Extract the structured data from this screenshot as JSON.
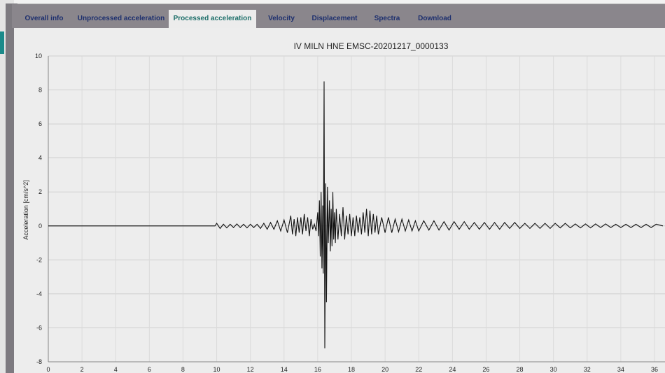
{
  "tabs": [
    {
      "label": "Overall info",
      "active": false
    },
    {
      "label": "Unprocessed acceleration",
      "active": false
    },
    {
      "label": "Processed acceleration",
      "active": true
    },
    {
      "label": "Velocity",
      "active": false
    },
    {
      "label": "Displacement",
      "active": false
    },
    {
      "label": "Spectra",
      "active": false
    },
    {
      "label": "Download",
      "active": false
    }
  ],
  "chart_data": {
    "type": "line",
    "title": "IV MILN HNE EMSC-20201217_0000133",
    "xlabel": "",
    "ylabel": "Acceleration [cm/s^2]",
    "xlim": [
      0,
      36.5
    ],
    "ylim": [
      -8,
      10
    ],
    "xticks": [
      "0",
      "2",
      "4",
      "6",
      "8",
      "10",
      "12",
      "14",
      "16",
      "18",
      "20",
      "22",
      "24",
      "26",
      "28",
      "30",
      "32",
      "34",
      "36"
    ],
    "yticks": [
      "10",
      "8",
      "6",
      "4",
      "2",
      "0",
      "-2",
      "-4",
      "-6",
      "-8"
    ],
    "grid": true,
    "line_color": "#111111",
    "series": [
      {
        "points": [
          [
            0,
            0
          ],
          [
            9.9,
            0
          ],
          [
            10.0,
            0.15
          ],
          [
            10.2,
            -0.15
          ],
          [
            10.4,
            0.1
          ],
          [
            10.6,
            -0.12
          ],
          [
            10.8,
            0.1
          ],
          [
            11.0,
            -0.1
          ],
          [
            11.2,
            0.12
          ],
          [
            11.4,
            -0.1
          ],
          [
            11.6,
            0.1
          ],
          [
            11.8,
            -0.12
          ],
          [
            12.0,
            0.1
          ],
          [
            12.2,
            -0.1
          ],
          [
            12.4,
            0.1
          ],
          [
            12.6,
            -0.15
          ],
          [
            12.8,
            0.15
          ],
          [
            13.0,
            -0.2
          ],
          [
            13.2,
            0.2
          ],
          [
            13.4,
            -0.2
          ],
          [
            13.6,
            0.3
          ],
          [
            13.8,
            -0.3
          ],
          [
            14.0,
            0.35
          ],
          [
            14.2,
            -0.4
          ],
          [
            14.4,
            0.6
          ],
          [
            14.5,
            -0.5
          ],
          [
            14.6,
            0.4
          ],
          [
            14.7,
            -0.6
          ],
          [
            14.8,
            0.5
          ],
          [
            14.9,
            -0.4
          ],
          [
            15.0,
            0.5
          ],
          [
            15.1,
            -0.5
          ],
          [
            15.2,
            0.7
          ],
          [
            15.3,
            -0.3
          ],
          [
            15.4,
            0.5
          ],
          [
            15.5,
            -0.6
          ],
          [
            15.6,
            0.4
          ],
          [
            15.7,
            -0.2
          ],
          [
            15.8,
            0.1
          ],
          [
            15.9,
            -0.3
          ],
          [
            16.0,
            0.8
          ],
          [
            16.05,
            -0.6
          ],
          [
            16.1,
            1.5
          ],
          [
            16.15,
            -1.8
          ],
          [
            16.2,
            2.0
          ],
          [
            16.25,
            -2.5
          ],
          [
            16.3,
            1.2
          ],
          [
            16.33,
            -2.8
          ],
          [
            16.38,
            8.5
          ],
          [
            16.42,
            -7.2
          ],
          [
            16.48,
            2.5
          ],
          [
            16.52,
            -4.5
          ],
          [
            16.58,
            2.3
          ],
          [
            16.63,
            -1.0
          ],
          [
            16.7,
            1.5
          ],
          [
            16.75,
            -1.5
          ],
          [
            16.8,
            1.0
          ],
          [
            16.85,
            -1.2
          ],
          [
            16.9,
            2.0
          ],
          [
            16.95,
            -0.8
          ],
          [
            17.0,
            0.8
          ],
          [
            17.05,
            -1.0
          ],
          [
            17.1,
            1.0
          ],
          [
            17.2,
            -0.8
          ],
          [
            17.3,
            0.7
          ],
          [
            17.4,
            -0.6
          ],
          [
            17.5,
            1.1
          ],
          [
            17.6,
            -0.8
          ],
          [
            17.7,
            0.6
          ],
          [
            17.8,
            -0.5
          ],
          [
            17.9,
            0.7
          ],
          [
            18.0,
            -0.6
          ],
          [
            18.1,
            0.5
          ],
          [
            18.2,
            -0.6
          ],
          [
            18.3,
            0.6
          ],
          [
            18.4,
            -0.4
          ],
          [
            18.5,
            0.5
          ],
          [
            18.6,
            -0.5
          ],
          [
            18.7,
            0.8
          ],
          [
            18.8,
            -0.4
          ],
          [
            18.9,
            1.0
          ],
          [
            19.0,
            -0.6
          ],
          [
            19.1,
            0.9
          ],
          [
            19.2,
            -0.5
          ],
          [
            19.3,
            0.7
          ],
          [
            19.4,
            -0.4
          ],
          [
            19.5,
            0.6
          ],
          [
            19.6,
            -0.5
          ],
          [
            19.8,
            0.5
          ],
          [
            20.0,
            -0.4
          ],
          [
            20.2,
            0.5
          ],
          [
            20.4,
            -0.4
          ],
          [
            20.6,
            0.4
          ],
          [
            20.8,
            -0.35
          ],
          [
            21.0,
            0.4
          ],
          [
            21.2,
            -0.3
          ],
          [
            21.4,
            0.35
          ],
          [
            21.6,
            -0.3
          ],
          [
            21.8,
            0.3
          ],
          [
            22.0,
            -0.3
          ],
          [
            22.3,
            0.3
          ],
          [
            22.6,
            -0.25
          ],
          [
            22.9,
            0.3
          ],
          [
            23.2,
            -0.25
          ],
          [
            23.5,
            0.25
          ],
          [
            23.8,
            -0.25
          ],
          [
            24.1,
            0.25
          ],
          [
            24.4,
            -0.2
          ],
          [
            24.7,
            0.25
          ],
          [
            25.0,
            -0.2
          ],
          [
            25.3,
            0.2
          ],
          [
            25.6,
            -0.2
          ],
          [
            25.9,
            0.2
          ],
          [
            26.2,
            -0.2
          ],
          [
            26.5,
            0.2
          ],
          [
            26.8,
            -0.2
          ],
          [
            27.1,
            0.2
          ],
          [
            27.4,
            -0.15
          ],
          [
            27.7,
            0.2
          ],
          [
            28.0,
            -0.15
          ],
          [
            28.3,
            0.15
          ],
          [
            28.6,
            -0.15
          ],
          [
            28.9,
            0.15
          ],
          [
            29.2,
            -0.15
          ],
          [
            29.5,
            0.15
          ],
          [
            29.8,
            -0.15
          ],
          [
            30.1,
            0.15
          ],
          [
            30.4,
            -0.12
          ],
          [
            30.7,
            0.15
          ],
          [
            31.0,
            -0.12
          ],
          [
            31.3,
            0.12
          ],
          [
            31.6,
            -0.12
          ],
          [
            31.9,
            0.12
          ],
          [
            32.2,
            -0.12
          ],
          [
            32.5,
            0.12
          ],
          [
            32.8,
            -0.1
          ],
          [
            33.1,
            0.12
          ],
          [
            33.4,
            -0.1
          ],
          [
            33.7,
            0.1
          ],
          [
            34.0,
            -0.1
          ],
          [
            34.3,
            0.1
          ],
          [
            34.6,
            -0.1
          ],
          [
            34.9,
            0.1
          ],
          [
            35.2,
            -0.1
          ],
          [
            35.5,
            0.1
          ],
          [
            35.8,
            -0.1
          ],
          [
            36.1,
            0.1
          ],
          [
            36.5,
            0
          ]
        ]
      }
    ]
  }
}
